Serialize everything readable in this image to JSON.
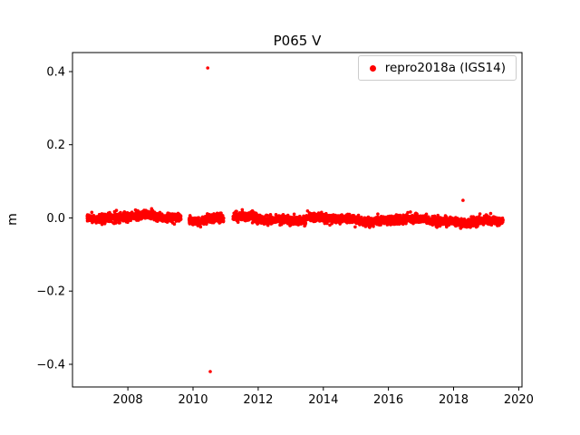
{
  "chart_data": {
    "type": "scatter",
    "title": "P065 V",
    "xlabel": "",
    "ylabel": "m",
    "xlim": [
      2006.3,
      2020.1
    ],
    "ylim": [
      -0.462,
      0.452
    ],
    "xticks": [
      2008,
      2010,
      2012,
      2014,
      2016,
      2018,
      2020
    ],
    "xtick_labels": [
      "2008",
      "2010",
      "2012",
      "2014",
      "2016",
      "2018",
      "2020"
    ],
    "yticks": [
      -0.4,
      -0.2,
      0.0,
      0.2,
      0.4
    ],
    "ytick_labels": [
      "−0.4",
      "−0.2",
      "0.0",
      "0.2",
      "0.4"
    ],
    "grid": false,
    "spine_color": "#000000",
    "text_color": "#000000",
    "legend": {
      "position": "upper right",
      "entries": [
        {
          "label": "repro2018a (IGS14)",
          "color": "#ff0000",
          "marker": "dot"
        }
      ]
    },
    "series": [
      {
        "name": "repro2018a (IGS14)",
        "color": "#ff0000",
        "marker": "dot",
        "marker_radius_px": 1.8,
        "sample_step_years": 0.004,
        "dense_segments": [
          {
            "x_start": 2006.75,
            "x_end": 2009.63,
            "y_mean_start": 0.004,
            "y_mean_end": 0.002,
            "y_noise_std": 0.006,
            "y_wander_amp": 0.004
          },
          {
            "x_start": 2009.88,
            "x_end": 2010.94,
            "y_mean_start": -0.003,
            "y_mean_end": -0.003,
            "y_noise_std": 0.006,
            "y_wander_amp": 0.004
          },
          {
            "x_start": 2011.23,
            "x_end": 2019.52,
            "y_mean_start": 0.0,
            "y_mean_end": -0.01,
            "y_noise_std": 0.006,
            "y_wander_amp": 0.004
          }
        ],
        "outliers": [
          [
            2010.45,
            0.41
          ],
          [
            2010.53,
            -0.42
          ],
          [
            2018.29,
            0.048
          ]
        ]
      }
    ]
  }
}
